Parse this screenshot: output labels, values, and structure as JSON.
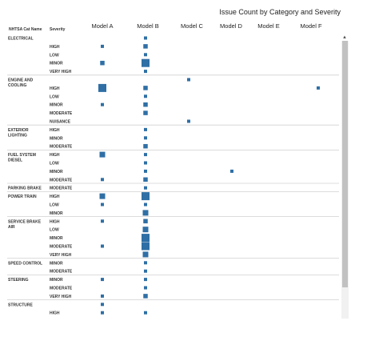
{
  "chart_data": {
    "type": "table",
    "title": "Issue Count by Category and Severity",
    "row_header_category": "NHTSA Cat Name",
    "row_header_severity": "Severity",
    "models": [
      "Model A",
      "Model B",
      "Model C",
      "Model D",
      "Model E",
      "Model F"
    ],
    "mark_color": "#2f6fa5",
    "scrollbar": true,
    "groups": [
      {
        "category": [
          "ELECTRICAL"
        ],
        "rows": [
          {
            "severity": "",
            "counts": [
              0,
              1,
              0,
              0,
              0,
              0
            ]
          },
          {
            "severity": "HIGH",
            "counts": [
              1,
              2,
              0,
              0,
              0,
              0
            ]
          },
          {
            "severity": "LOW",
            "counts": [
              0,
              1,
              0,
              0,
              0,
              0
            ]
          },
          {
            "severity": "MINOR",
            "counts": [
              2,
              5,
              0,
              0,
              0,
              0
            ]
          },
          {
            "severity": "VERY HIGH",
            "counts": [
              0,
              1,
              0,
              0,
              0,
              0
            ]
          }
        ]
      },
      {
        "category": [
          "ENGINE AND",
          "COOLING"
        ],
        "rows": [
          {
            "severity": "",
            "counts": [
              0,
              0,
              1,
              0,
              0,
              0
            ]
          },
          {
            "severity": "HIGH",
            "counts": [
              5,
              2,
              0,
              0,
              0,
              1
            ]
          },
          {
            "severity": "LOW",
            "counts": [
              0,
              1,
              0,
              0,
              0,
              0
            ]
          },
          {
            "severity": "MINOR",
            "counts": [
              1,
              2,
              0,
              0,
              0,
              0
            ]
          },
          {
            "severity": "MODERATE",
            "counts": [
              0,
              2,
              0,
              0,
              0,
              0
            ]
          },
          {
            "severity": "NUISANCE",
            "counts": [
              0,
              0,
              1,
              0,
              0,
              0
            ]
          }
        ]
      },
      {
        "category": [
          "EXTERIOR",
          "LIGHTING"
        ],
        "rows": [
          {
            "severity": "HIGH",
            "counts": [
              0,
              1,
              0,
              0,
              0,
              0
            ]
          },
          {
            "severity": "MINOR",
            "counts": [
              0,
              1,
              0,
              0,
              0,
              0
            ]
          },
          {
            "severity": "MODERATE",
            "counts": [
              0,
              2,
              0,
              0,
              0,
              0
            ]
          }
        ]
      },
      {
        "category": [
          "FUEL SYSTEM",
          "DIESEL"
        ],
        "rows": [
          {
            "severity": "HIGH",
            "counts": [
              3,
              1,
              0,
              0,
              0,
              0
            ]
          },
          {
            "severity": "LOW",
            "counts": [
              0,
              1,
              0,
              0,
              0,
              0
            ]
          },
          {
            "severity": "MINOR",
            "counts": [
              0,
              1,
              0,
              1,
              0,
              0
            ]
          },
          {
            "severity": "MODERATE",
            "counts": [
              1,
              2,
              0,
              0,
              0,
              0
            ]
          }
        ]
      },
      {
        "category": [
          "PARKING BRAKE"
        ],
        "rows": [
          {
            "severity": "MODERATE",
            "counts": [
              0,
              1,
              0,
              0,
              0,
              0
            ]
          }
        ]
      },
      {
        "category": [
          "POWER TRAIN"
        ],
        "rows": [
          {
            "severity": "HIGH",
            "counts": [
              3,
              5,
              0,
              0,
              0,
              0
            ]
          },
          {
            "severity": "LOW",
            "counts": [
              1,
              1,
              0,
              0,
              0,
              0
            ]
          },
          {
            "severity": "MINOR",
            "counts": [
              0,
              3,
              0,
              0,
              0,
              0
            ]
          }
        ]
      },
      {
        "category": [
          "SERVICE BRAKE",
          "AIR"
        ],
        "rows": [
          {
            "severity": "HIGH",
            "counts": [
              1,
              2,
              0,
              0,
              0,
              0
            ]
          },
          {
            "severity": "LOW",
            "counts": [
              0,
              3,
              0,
              0,
              0,
              0
            ]
          },
          {
            "severity": "MINOR",
            "counts": [
              0,
              5,
              0,
              0,
              0,
              0
            ]
          },
          {
            "severity": "MODERATE",
            "counts": [
              1,
              5,
              0,
              0,
              0,
              0
            ]
          },
          {
            "severity": "VERY HIGH",
            "counts": [
              0,
              3,
              0,
              0,
              0,
              0
            ]
          }
        ]
      },
      {
        "category": [
          "SPEED CONTROL"
        ],
        "rows": [
          {
            "severity": "MINOR",
            "counts": [
              0,
              1,
              0,
              0,
              0,
              0
            ]
          },
          {
            "severity": "MODERATE",
            "counts": [
              0,
              1,
              0,
              0,
              0,
              0
            ]
          }
        ]
      },
      {
        "category": [
          "STEERING"
        ],
        "rows": [
          {
            "severity": "MINOR",
            "counts": [
              1,
              1,
              0,
              0,
              0,
              0
            ]
          },
          {
            "severity": "MODERATE",
            "counts": [
              0,
              1,
              0,
              0,
              0,
              0
            ]
          },
          {
            "severity": "VERY HIGH",
            "counts": [
              1,
              2,
              0,
              0,
              0,
              0
            ]
          }
        ]
      },
      {
        "category": [
          "STRUCTURE"
        ],
        "rows": [
          {
            "severity": "",
            "counts": [
              1,
              0,
              0,
              0,
              0,
              0
            ]
          },
          {
            "severity": "HIGH",
            "counts": [
              1,
              1,
              0,
              0,
              0,
              0
            ]
          }
        ]
      }
    ]
  }
}
